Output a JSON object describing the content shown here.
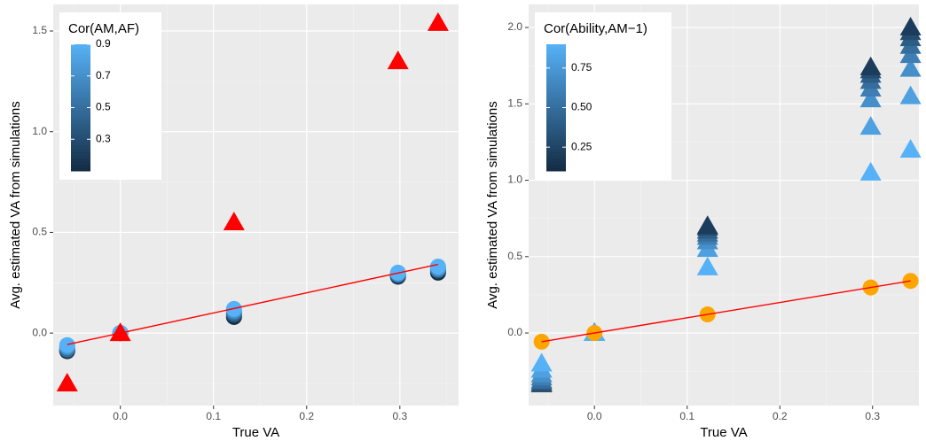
{
  "chart_data": [
    {
      "type": "scatter",
      "x_label": "True VA",
      "y_label": "Avg. estimated VA from simulations",
      "xlim": [
        -0.072,
        0.363
      ],
      "ylim": [
        -0.36,
        1.632
      ],
      "xticks": [
        {
          "value": 0,
          "label": "0.0"
        },
        0.1,
        0.2,
        0.3
      ],
      "yticks": [
        {
          "value": 0,
          "label": "0.0"
        },
        0.5,
        {
          "value": 1,
          "label": "1.0"
        },
        1.5
      ],
      "grid": true,
      "legend_position": "top-left",
      "colorscale": {
        "title": "Cor(AM,AF)",
        "low": "#132B43",
        "high": "#56B1F7",
        "limits": [
          0.1,
          0.9
        ],
        "ticks": [
          0.3,
          0.5,
          0.7,
          0.9
        ]
      },
      "layers": [
        {
          "shape": "circle",
          "color_by": "colorscale",
          "x": [
            -0.057,
            -0.057,
            -0.057,
            -0.057,
            -0.057,
            0,
            0,
            0,
            0,
            0,
            0.122,
            0.122,
            0.122,
            0.122,
            0.122,
            0.298,
            0.298,
            0.298,
            0.298,
            0.298,
            0.341,
            0.341,
            0.341,
            0.341,
            0.341
          ],
          "values": [
            -0.09,
            -0.085,
            -0.08,
            -0.07,
            -0.06,
            0,
            0,
            0,
            0,
            0,
            0.08,
            0.09,
            0.1,
            0.11,
            0.12,
            0.28,
            0.285,
            0.29,
            0.295,
            0.3,
            0.3,
            0.31,
            0.315,
            0.32,
            0.33
          ],
          "color_values": [
            0.1,
            0.3,
            0.5,
            0.7,
            0.9,
            0.1,
            0.3,
            0.5,
            0.7,
            0.9,
            0.1,
            0.3,
            0.5,
            0.7,
            0.9,
            0.1,
            0.3,
            0.5,
            0.7,
            0.9,
            0.1,
            0.3,
            0.5,
            0.7,
            0.9
          ]
        },
        {
          "shape": "triangle",
          "color": "#ff0000",
          "x": [
            -0.057,
            0,
            0.122,
            0.298,
            0.341
          ],
          "values": [
            -0.25,
            0,
            0.55,
            1.35,
            1.54
          ]
        },
        {
          "shape": "line",
          "color": "#ff0000",
          "x": [
            -0.057,
            0.341
          ],
          "values": [
            -0.057,
            0.341
          ]
        }
      ]
    },
    {
      "type": "scatter",
      "x_label": "True VA",
      "y_label": "Avg. estimated VA from simulations",
      "xlim": [
        -0.071,
        0.35
      ],
      "ylim": [
        -0.475,
        2.151
      ],
      "xticks": [
        {
          "value": 0,
          "label": "0.0"
        },
        0.1,
        0.2,
        0.3
      ],
      "yticks": [
        {
          "value": 0,
          "label": "0.0"
        },
        0.5,
        {
          "value": 1,
          "label": "1.0"
        },
        1.5,
        {
          "value": 2,
          "label": "2.0"
        }
      ],
      "grid": true,
      "legend_position": "top-left",
      "colorscale": {
        "title": "Cor(Ability,AM−1)",
        "low": "#132B43",
        "high": "#56B1F7",
        "limits": [
          0.1,
          0.9
        ],
        "ticks": [
          0.25,
          {
            "value": 0.5,
            "label": "0.50"
          },
          0.75
        ]
      },
      "layers": [
        {
          "shape": "triangle",
          "color_by": "colorscale",
          "x": [
            -0.057,
            -0.057,
            -0.057,
            -0.057,
            -0.057,
            -0.057,
            -0.057,
            -0.057,
            0,
            0,
            0,
            0,
            0,
            0,
            0,
            0,
            0.122,
            0.122,
            0.122,
            0.122,
            0.122,
            0.122,
            0.122,
            0.122,
            0.298,
            0.298,
            0.298,
            0.298,
            0.298,
            0.298,
            0.298,
            0.298,
            0.341,
            0.341,
            0.341,
            0.341,
            0.341,
            0.341,
            0.341,
            0.341
          ],
          "values": [
            -0.335,
            -0.33,
            -0.32,
            -0.31,
            -0.29,
            -0.27,
            -0.24,
            -0.2,
            0,
            0,
            0,
            0,
            0,
            0,
            0,
            0,
            0.43,
            0.55,
            0.6,
            0.63,
            0.65,
            0.67,
            0.69,
            0.7,
            1.05,
            1.35,
            1.53,
            1.6,
            1.65,
            1.69,
            1.72,
            1.74,
            1.2,
            1.55,
            1.73,
            1.82,
            1.88,
            1.93,
            1.97,
            2.0
          ],
          "color_values": [
            0.2,
            0.3,
            0.4,
            0.5,
            0.6,
            0.7,
            0.8,
            0.9,
            0.2,
            0.3,
            0.4,
            0.5,
            0.6,
            0.7,
            0.8,
            0.9,
            0.9,
            0.8,
            0.7,
            0.6,
            0.5,
            0.4,
            0.3,
            0.2,
            0.9,
            0.8,
            0.7,
            0.6,
            0.5,
            0.4,
            0.3,
            0.2,
            0.9,
            0.8,
            0.7,
            0.6,
            0.5,
            0.4,
            0.3,
            0.2
          ]
        },
        {
          "shape": "circle",
          "color": "#FFA500",
          "x": [
            -0.057,
            0,
            0.122,
            0.298,
            0.341
          ],
          "values": [
            -0.057,
            0,
            0.122,
            0.298,
            0.341
          ]
        },
        {
          "shape": "line",
          "color": "#ff0000",
          "x": [
            -0.057,
            0.341
          ],
          "values": [
            -0.057,
            0.341
          ]
        }
      ]
    }
  ]
}
